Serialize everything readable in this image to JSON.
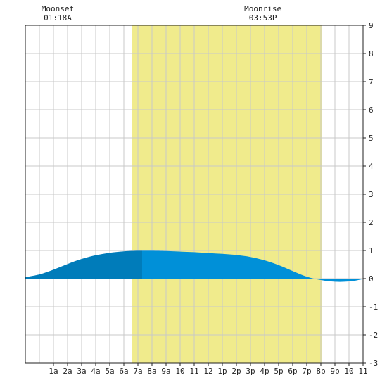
{
  "moon_events": [
    {
      "label": "Moonset",
      "time": "01:18A",
      "hour": 1.3
    },
    {
      "label": "Moonrise",
      "time": "03:53P",
      "hour": 15.88
    }
  ],
  "chart_data": {
    "type": "area",
    "title": "",
    "xlabel": "",
    "ylabel": "",
    "xlim": [
      -1,
      23
    ],
    "ylim": [
      -3,
      9
    ],
    "grid": true,
    "x_tick_labels": [
      "1a",
      "2a",
      "3a",
      "4a",
      "5a",
      "6a",
      "7a",
      "8a",
      "9a",
      "10",
      "11",
      "12",
      "1p",
      "2p",
      "3p",
      "4p",
      "5p",
      "6p",
      "7p",
      "8p",
      "9p",
      "10",
      "11"
    ],
    "x_tick_hours": [
      1,
      2,
      3,
      4,
      5,
      6,
      7,
      8,
      9,
      10,
      11,
      12,
      13,
      14,
      15,
      16,
      17,
      18,
      19,
      20,
      21,
      22,
      23
    ],
    "y_ticks": [
      -3,
      -2,
      -1,
      0,
      1,
      2,
      3,
      4,
      5,
      6,
      7,
      8,
      9
    ],
    "daylight": {
      "start_hour": 6.58,
      "end_hour": 20.08,
      "color": "#f0eb8c"
    },
    "series": [
      {
        "color_before_sunrise": "#007cba",
        "color_after_sunrise": "#0090d8",
        "x": [
          -1,
          0,
          1,
          2,
          3,
          4,
          5,
          6,
          7,
          8,
          9,
          10,
          11,
          12,
          13,
          14,
          15,
          16,
          17,
          18,
          19,
          20,
          21,
          22,
          23
        ],
        "y": [
          0.05,
          0.15,
          0.32,
          0.52,
          0.7,
          0.83,
          0.92,
          0.97,
          0.99,
          0.99,
          0.98,
          0.96,
          0.94,
          0.91,
          0.88,
          0.84,
          0.77,
          0.65,
          0.48,
          0.27,
          0.07,
          -0.05,
          -0.11,
          -0.1,
          -0.02
        ]
      }
    ]
  }
}
